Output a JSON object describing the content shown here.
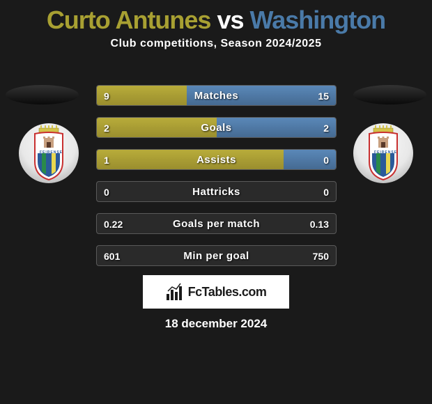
{
  "title": {
    "player1": "Curto Antunes",
    "vs": "vs",
    "player2": "Washington"
  },
  "subtitle": "Club competitions, Season 2024/2025",
  "colors": {
    "player1": "#a8a032",
    "player2": "#4a7aa8",
    "bar1_top": "#b8ac3a",
    "bar1_bottom": "#9a8e2e",
    "bar2_top": "#5a88b8",
    "bar2_bottom": "#456a92",
    "background": "#1a1a1a",
    "text": "#ffffff",
    "border": "#5a5a5a",
    "row_bg": "#2a2a2a"
  },
  "rows": [
    {
      "label": "Matches",
      "val1": "9",
      "val2": "15",
      "pct1": 37.5,
      "pct2": 62.5
    },
    {
      "label": "Goals",
      "val1": "2",
      "val2": "2",
      "pct1": 50,
      "pct2": 50
    },
    {
      "label": "Assists",
      "val1": "1",
      "val2": "0",
      "pct1": 78,
      "pct2": 22
    },
    {
      "label": "Hattricks",
      "val1": "0",
      "val2": "0",
      "pct1": 0,
      "pct2": 0
    },
    {
      "label": "Goals per match",
      "val1": "0.22",
      "val2": "0.13",
      "pct1": 0,
      "pct2": 0
    },
    {
      "label": "Min per goal",
      "val1": "601",
      "val2": "750",
      "pct1": 0,
      "pct2": 0
    }
  ],
  "branding": "FcTables.com",
  "date": "18 december 2024",
  "crest": {
    "text": "FEIRENSE",
    "top_color": "#d4c44a",
    "shield_border": "#c83030",
    "shield_fill": "#ffffff",
    "stripe_blue": "#2a5a9a",
    "stripe_green": "#2a8a4a",
    "stripe_yellow": "#e8d850",
    "castle_color": "#c8a080"
  }
}
